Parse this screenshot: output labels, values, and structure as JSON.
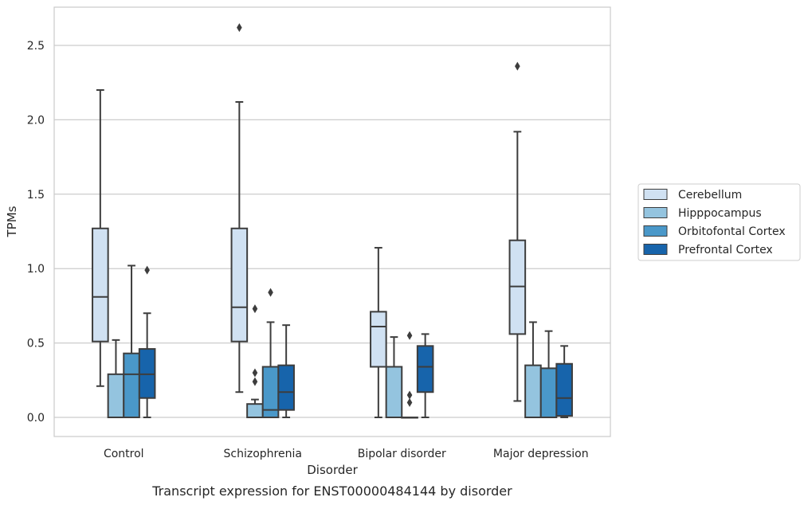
{
  "chart_data": {
    "type": "box",
    "title": "Transcript expression for ENST00000484144 by disorder",
    "xlabel": "Disorder",
    "ylabel": "TPMs",
    "ylim": [
      -0.13,
      2.76
    ],
    "yticks": [
      "0.0",
      "0.5",
      "1.0",
      "1.5",
      "2.0",
      "2.5"
    ],
    "categories": [
      "Control",
      "Schizophrenia",
      "Bipolar disorder",
      "Major depression"
    ],
    "grid": true,
    "legend_position": "right",
    "series": [
      {
        "name": "Cerebellum",
        "color": "#d0e1f2",
        "boxes": [
          {
            "whislo": 0.21,
            "q1": 0.51,
            "med": 0.81,
            "q3": 1.27,
            "whishi": 2.2,
            "fliers": []
          },
          {
            "whislo": 0.17,
            "q1": 0.51,
            "med": 0.74,
            "q3": 1.27,
            "whishi": 2.12,
            "fliers": [
              2.62
            ]
          },
          {
            "whislo": 0.0,
            "q1": 0.34,
            "med": 0.61,
            "q3": 0.71,
            "whishi": 1.14,
            "fliers": []
          },
          {
            "whislo": 0.11,
            "q1": 0.56,
            "med": 0.88,
            "q3": 1.19,
            "whishi": 1.92,
            "fliers": [
              2.36
            ]
          }
        ]
      },
      {
        "name": "Hipppocampus",
        "color": "#94c4df",
        "boxes": [
          {
            "whislo": 0.0,
            "q1": 0.0,
            "med": 0.0,
            "q3": 0.29,
            "whishi": 0.52,
            "fliers": []
          },
          {
            "whislo": 0.0,
            "q1": 0.0,
            "med": 0.0,
            "q3": 0.09,
            "whishi": 0.12,
            "fliers": [
              0.24,
              0.3,
              0.73
            ]
          },
          {
            "whislo": 0.0,
            "q1": 0.0,
            "med": 0.0,
            "q3": 0.34,
            "whishi": 0.54,
            "fliers": []
          },
          {
            "whislo": 0.0,
            "q1": 0.0,
            "med": 0.0,
            "q3": 0.35,
            "whishi": 0.64,
            "fliers": []
          }
        ]
      },
      {
        "name": "Orbitofontal Cortex",
        "color": "#4a98c9",
        "boxes": [
          {
            "whislo": 0.0,
            "q1": 0.0,
            "med": 0.29,
            "q3": 0.43,
            "whishi": 1.02,
            "fliers": []
          },
          {
            "whislo": 0.0,
            "q1": 0.0,
            "med": 0.05,
            "q3": 0.34,
            "whishi": 0.64,
            "fliers": [
              0.84
            ]
          },
          {
            "whislo": 0.0,
            "q1": 0.0,
            "med": 0.0,
            "q3": 0.0,
            "whishi": 0.0,
            "fliers": [
              0.1,
              0.15,
              0.55
            ]
          },
          {
            "whislo": 0.0,
            "q1": 0.0,
            "med": 0.0,
            "q3": 0.33,
            "whishi": 0.58,
            "fliers": []
          }
        ]
      },
      {
        "name": "Prefrontal Cortex",
        "color": "#1764ab",
        "boxes": [
          {
            "whislo": 0.0,
            "q1": 0.13,
            "med": 0.29,
            "q3": 0.46,
            "whishi": 0.7,
            "fliers": [
              0.99
            ]
          },
          {
            "whislo": 0.0,
            "q1": 0.05,
            "med": 0.17,
            "q3": 0.35,
            "whishi": 0.62,
            "fliers": []
          },
          {
            "whislo": 0.0,
            "q1": 0.17,
            "med": 0.34,
            "q3": 0.48,
            "whishi": 0.56,
            "fliers": []
          },
          {
            "whislo": 0.0,
            "q1": 0.01,
            "med": 0.13,
            "q3": 0.36,
            "whishi": 0.48,
            "fliers": []
          }
        ]
      }
    ]
  }
}
